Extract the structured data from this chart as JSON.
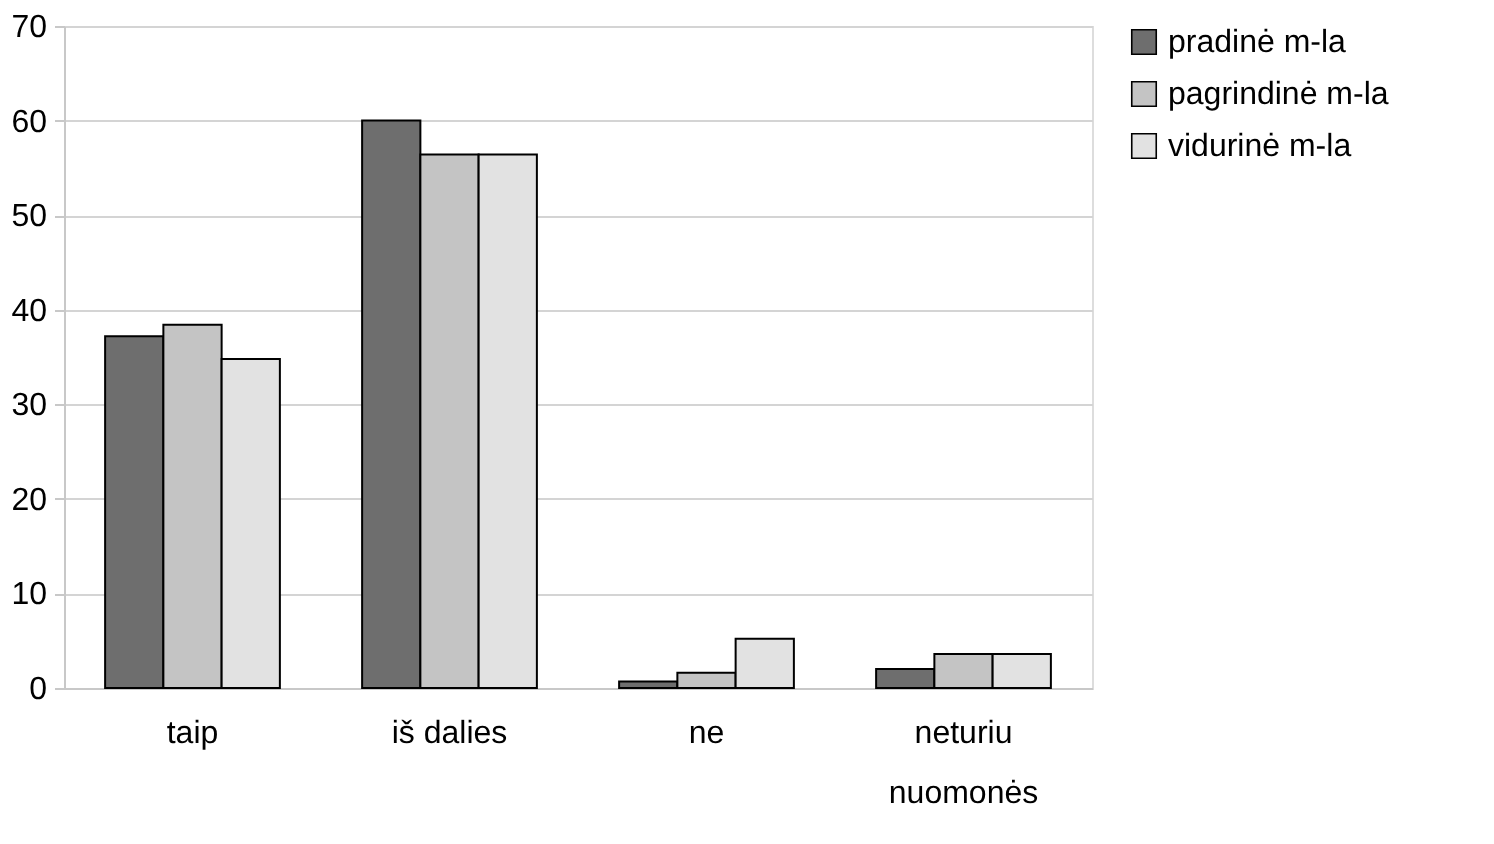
{
  "chart_data": {
    "type": "bar",
    "categories": [
      "taip",
      "iš dalies",
      "ne",
      "neturiu nuomonės"
    ],
    "series": [
      {
        "name": "pradinė m-la",
        "color": "#6e6e6e",
        "values": [
          37.2,
          60,
          0.7,
          2.0
        ]
      },
      {
        "name": "pagrindinė m-la",
        "color": "#c4c4c4",
        "values": [
          38.4,
          56.4,
          1.6,
          3.6
        ]
      },
      {
        "name": "vidurinė m-la",
        "color": "#e2e2e2",
        "values": [
          34.8,
          56.4,
          5.2,
          3.6
        ]
      }
    ],
    "ylim": [
      0,
      70
    ],
    "yticks": [
      0,
      10,
      20,
      30,
      40,
      50,
      60,
      70
    ],
    "grid": "y",
    "legend": "right"
  }
}
